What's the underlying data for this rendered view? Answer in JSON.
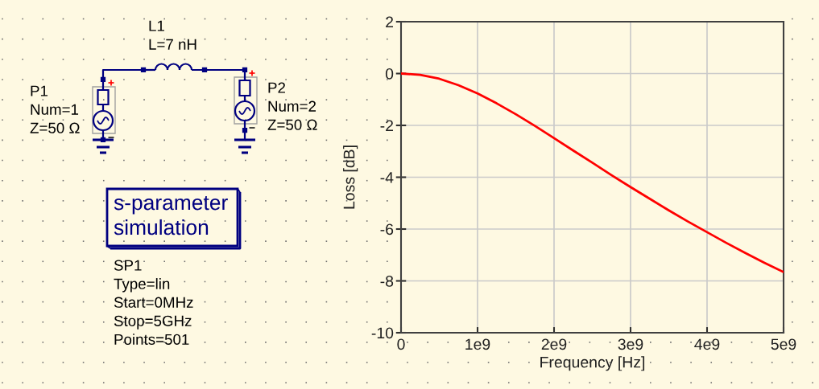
{
  "chart_data": {
    "type": "line",
    "xlabel": "Frequency [Hz]",
    "ylabel": "Loss [dB]",
    "x": [
      0,
      250000000,
      500000000,
      750000000,
      1000000000,
      1250000000,
      1500000000,
      1750000000,
      2000000000,
      2250000000,
      2500000000,
      2750000000,
      3000000000,
      3250000000,
      3500000000,
      3750000000,
      4000000000,
      4250000000,
      4500000000,
      4750000000,
      5000000000
    ],
    "values": [
      0,
      -0.05,
      -0.2,
      -0.45,
      -0.77,
      -1.15,
      -1.57,
      -2.02,
      -2.49,
      -2.97,
      -3.44,
      -3.92,
      -4.38,
      -4.83,
      -5.28,
      -5.71,
      -6.12,
      -6.53,
      -6.92,
      -7.3,
      -7.66
    ],
    "color": "#ff0000",
    "xlim": [
      0,
      5000000000
    ],
    "ylim": [
      -10,
      2
    ],
    "xticks": [
      0,
      {
        "value": 1000000000,
        "label": "1e9"
      },
      {
        "value": 2000000000,
        "label": "2e9"
      },
      {
        "value": 3000000000,
        "label": "3e9"
      },
      {
        "value": 4000000000,
        "label": "4e9"
      },
      {
        "value": 5000000000,
        "label": "5e9"
      }
    ],
    "yticks": [
      2,
      0,
      -2,
      -4,
      -6,
      -8,
      -10
    ],
    "grid": true,
    "annotations": [
      "L1\nL=7 nH",
      "P1\nNum=1\nZ=50 Ω",
      "P2\nNum=2\nZ=50 Ω",
      "s-parameter\nsimulation",
      "SP1\nType=lin\nStart=0MHz\nStop=5GHz\nPoints=501"
    ]
  }
}
